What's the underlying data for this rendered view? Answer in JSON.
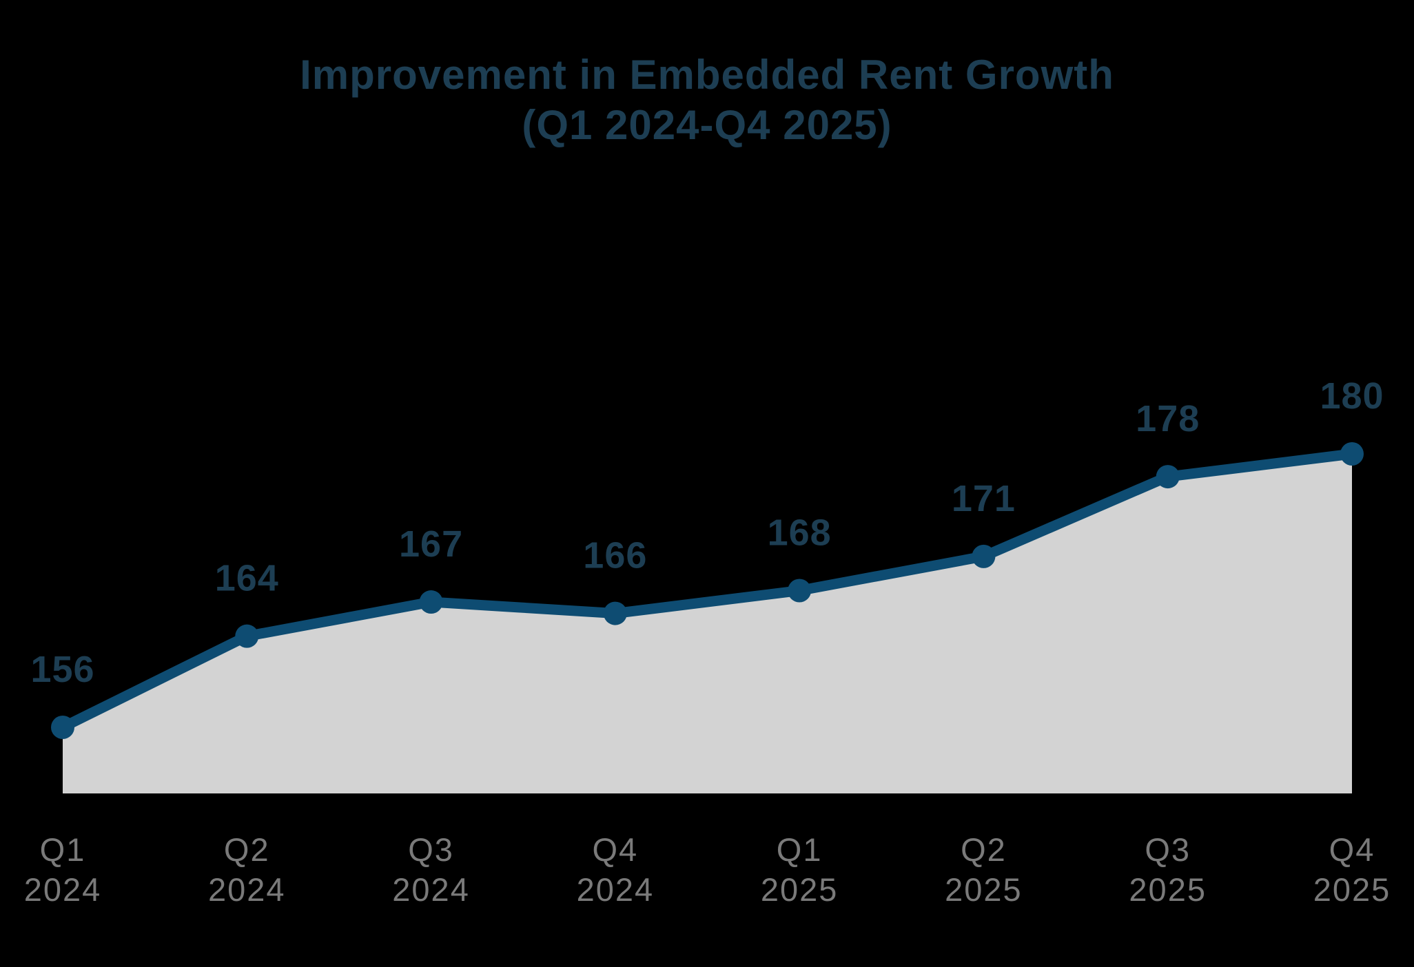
{
  "background_color": "#000000",
  "chart_data": {
    "type": "area",
    "title": "Improvement in Embedded Rent Growth",
    "subtitle": "(Q1 2024-Q4 2025)",
    "categories": [
      "Q1 2024",
      "Q2 2024",
      "Q3 2024",
      "Q4 2024",
      "Q1 2025",
      "Q2 2025",
      "Q3 2025",
      "Q4 2025"
    ],
    "values": [
      156,
      164,
      167,
      166,
      168,
      171,
      178,
      180
    ],
    "data_labels_shown": true,
    "y_axis": "hidden",
    "grid": false,
    "legend": "none",
    "xlabel": "",
    "ylabel": "",
    "colors": {
      "background": "#000000",
      "line": "#0e4c72",
      "marker": "#0e4c72",
      "area_fill": "#d3d3d3",
      "title_text": "#1d3e53",
      "data_label_text": "#1d3e53",
      "axis_label_text": "#7a7a7a"
    }
  }
}
